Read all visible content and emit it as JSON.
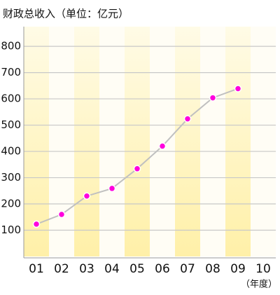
{
  "chart_data": {
    "type": "line",
    "title": "财政总收入（单位：亿元）",
    "x_label": "（年度）",
    "categories": [
      "01",
      "02",
      "03",
      "04",
      "05",
      "06",
      "07",
      "08",
      "09",
      "10"
    ],
    "series": [
      {
        "name": null,
        "color": "#c0c0c0",
        "marker_color": "#ff00dd",
        "values": [
          123,
          160,
          230,
          259,
          334,
          420,
          524,
          604,
          639,
          null
        ]
      }
    ],
    "ylim": [
      0,
      875
    ],
    "yticks": [
      100,
      200,
      300,
      400,
      500,
      600,
      700,
      800
    ],
    "grid": true
  }
}
